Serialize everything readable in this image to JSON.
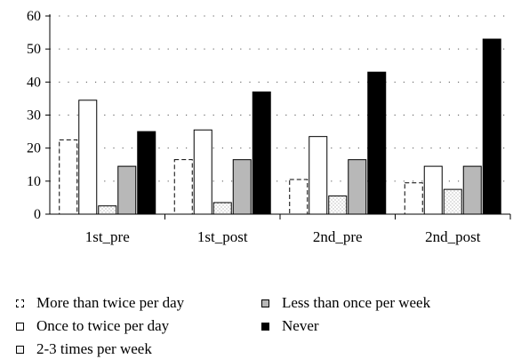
{
  "chart_data": {
    "type": "bar",
    "categories": [
      "1st_pre",
      "1st_post",
      "2nd_pre",
      "2nd_post"
    ],
    "category_labels": [
      "1st_pre",
      "1st_post",
      "2nd_pre",
      "2nd_post"
    ],
    "series": [
      {
        "name": "More than twice per day",
        "values": [
          22.5,
          16.5,
          10.5,
          9.5
        ],
        "fill": "#ffffff",
        "pattern": "dashed-outline"
      },
      {
        "name": "Once to twice per day",
        "values": [
          34.5,
          25.5,
          23.5,
          14.5
        ],
        "fill": "#ffffff",
        "pattern": "solid-outline"
      },
      {
        "name": "2-3 times per week",
        "values": [
          2.5,
          3.5,
          5.5,
          7.5
        ],
        "fill": "#f2f2f2",
        "pattern": "dotted"
      },
      {
        "name": "Less than once per week",
        "values": [
          14.5,
          16.5,
          16.5,
          14.5
        ],
        "fill": "#b8b8b8",
        "pattern": "solid"
      },
      {
        "name": "Never",
        "values": [
          25,
          37,
          43,
          53
        ],
        "fill": "#000000",
        "pattern": "solid"
      }
    ],
    "ylim": [
      0,
      60
    ],
    "yticks": [
      0,
      10,
      20,
      30,
      40,
      50,
      60
    ],
    "ytick_labels": [
      "0",
      "10",
      "20",
      "30",
      "40",
      "50",
      "60"
    ],
    "grid": "horizontal dotted",
    "legend_placement": "bottom",
    "title": "",
    "xlabel": "",
    "ylabel": ""
  }
}
